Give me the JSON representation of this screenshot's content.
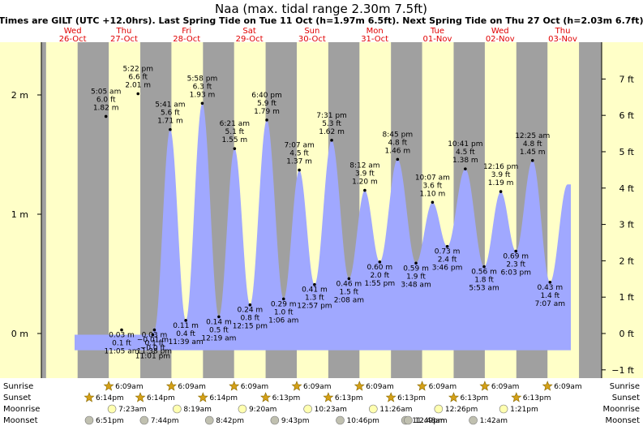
{
  "chart_data": {
    "type": "area",
    "title": "Naa (max. tidal range 2.30m 7.5ft)",
    "subtitle": "Times are GILT (UTC +12.0hrs). Last Spring Tide on Tue 11 Oct (h=1.97m 6.5ft). Next Spring Tide on Thu 27 Oct (h=2.03m 6.7ft)",
    "days": [
      {
        "name": "Wed",
        "date": "26-Oct"
      },
      {
        "name": "Thu",
        "date": "27-Oct"
      },
      {
        "name": "Fri",
        "date": "28-Oct"
      },
      {
        "name": "Sat",
        "date": "29-Oct"
      },
      {
        "name": "Sun",
        "date": "30-Oct"
      },
      {
        "name": "Mon",
        "date": "31-Oct"
      },
      {
        "name": "Tue",
        "date": "01-Nov"
      },
      {
        "name": "Wed",
        "date": "02-Nov"
      },
      {
        "name": "Thu",
        "date": "03-Nov"
      }
    ],
    "y_left_ticks": [
      {
        "v": 0,
        "label": "0 m"
      },
      {
        "v": 1,
        "label": "1 m"
      },
      {
        "v": 2,
        "label": "2 m"
      }
    ],
    "y_right_ticks": [
      {
        "v": -1,
        "label": "−1 ft"
      },
      {
        "v": 0,
        "label": "0 ft"
      },
      {
        "v": 1,
        "label": "1 ft"
      },
      {
        "v": 2,
        "label": "2 ft"
      },
      {
        "v": 3,
        "label": "3 ft"
      },
      {
        "v": 4,
        "label": "4 ft"
      },
      {
        "v": 5,
        "label": "5 ft"
      },
      {
        "v": 6,
        "label": "6 ft"
      },
      {
        "v": 7,
        "label": "7 ft"
      }
    ],
    "ylim_m": [
      -0.45,
      2.5
    ],
    "tides": [
      {
        "h": -0.01,
        "hl": "low",
        "d": 1,
        "t": "11:01 pm",
        "m": "−0.01 m",
        "ft": "−0.0 ft"
      },
      {
        "h": 1.82,
        "hl": "high",
        "d": 1,
        "t": "5:05 am",
        "m": "1.82 m",
        "ft": "6.0 ft"
      },
      {
        "h": 0.03,
        "hl": "low",
        "d": 1,
        "t": "11:05 am",
        "m": "0.03 m",
        "ft": "0.1 ft"
      },
      {
        "h": 2.01,
        "hl": "high",
        "d": 1,
        "t": "5:22 pm",
        "m": "2.01 m",
        "ft": "6.6 ft"
      },
      {
        "h": 0.03,
        "hl": "low",
        "d": 1,
        "t": "11:38 pm",
        "m": "0.03 m",
        "ft": "0.1 ft"
      },
      {
        "h": 1.71,
        "hl": "high",
        "d": 2,
        "t": "5:41 am",
        "m": "1.71 m",
        "ft": "5.6 ft"
      },
      {
        "h": 0.11,
        "hl": "low",
        "d": 2,
        "t": "11:39 am",
        "m": "0.11 m",
        "ft": "0.4 ft"
      },
      {
        "h": 1.93,
        "hl": "high",
        "d": 2,
        "t": "5:58 pm",
        "m": "1.93 m",
        "ft": "6.3 ft"
      },
      {
        "h": 0.14,
        "hl": "low",
        "d": 3,
        "t": "12:19 am",
        "m": "0.14 m",
        "ft": "0.5 ft"
      },
      {
        "h": 1.55,
        "hl": "high",
        "d": 3,
        "t": "6:21 am",
        "m": "1.55 m",
        "ft": "5.1 ft"
      },
      {
        "h": 0.24,
        "hl": "low",
        "d": 3,
        "t": "12:15 pm",
        "m": "0.24 m",
        "ft": "0.8 ft"
      },
      {
        "h": 1.79,
        "hl": "high",
        "d": 3,
        "t": "6:40 pm",
        "m": "1.79 m",
        "ft": "5.9 ft"
      },
      {
        "h": 0.29,
        "hl": "low",
        "d": 4,
        "t": "1:06 am",
        "m": "0.29 m",
        "ft": "1.0 ft"
      },
      {
        "h": 1.37,
        "hl": "high",
        "d": 4,
        "t": "7:07 am",
        "m": "1.37 m",
        "ft": "4.5 ft"
      },
      {
        "h": 0.41,
        "hl": "low",
        "d": 4,
        "t": "12:57 pm",
        "m": "0.41 m",
        "ft": "1.3 ft"
      },
      {
        "h": 1.62,
        "hl": "high",
        "d": 4,
        "t": "7:31 pm",
        "m": "1.62 m",
        "ft": "5.3 ft"
      },
      {
        "h": 0.46,
        "hl": "low",
        "d": 5,
        "t": "2:08 am",
        "m": "0.46 m",
        "ft": "1.5 ft"
      },
      {
        "h": 1.2,
        "hl": "high",
        "d": 5,
        "t": "8:12 am",
        "m": "1.20 m",
        "ft": "3.9 ft"
      },
      {
        "h": 0.6,
        "hl": "low",
        "d": 5,
        "t": "1:55 pm",
        "m": "0.60 m",
        "ft": "2.0 ft"
      },
      {
        "h": 1.46,
        "hl": "high",
        "d": 5,
        "t": "8:45 pm",
        "m": "1.46 m",
        "ft": "4.8 ft"
      },
      {
        "h": 0.59,
        "hl": "low",
        "d": 6,
        "t": "3:48 am",
        "m": "0.59 m",
        "ft": "1.9 ft"
      },
      {
        "h": 1.1,
        "hl": "high",
        "d": 6,
        "t": "10:07 am",
        "m": "1.10 m",
        "ft": "3.6 ft"
      },
      {
        "h": 0.73,
        "hl": "low",
        "d": 6,
        "t": "3:46 pm",
        "m": "0.73 m",
        "ft": "2.4 ft"
      },
      {
        "h": 1.38,
        "hl": "high",
        "d": 6,
        "t": "10:41 pm",
        "m": "1.38 m",
        "ft": "4.5 ft"
      },
      {
        "h": 0.56,
        "hl": "low",
        "d": 7,
        "t": "5:53 am",
        "m": "0.56 m",
        "ft": "1.8 ft"
      },
      {
        "h": 1.19,
        "hl": "high",
        "d": 7,
        "t": "12:16 pm",
        "m": "1.19 m",
        "ft": "3.9 ft"
      },
      {
        "h": 0.69,
        "hl": "low",
        "d": 7,
        "t": "6:03 pm",
        "m": "0.69 m",
        "ft": "2.3 ft"
      },
      {
        "h": 1.45,
        "hl": "high",
        "d": 8,
        "t": "12:25 am",
        "m": "1.45 m",
        "ft": "4.8 ft"
      },
      {
        "h": 0.43,
        "hl": "low",
        "d": 8,
        "t": "7:07 am",
        "m": "0.43 m",
        "ft": "1.4 ft"
      }
    ],
    "row_labels": {
      "sunrise": "Sunrise",
      "sunset": "Sunset",
      "moonrise": "Moonrise",
      "moonset": "Moonset"
    },
    "sunrise": [
      {
        "d": 1,
        "t": "6:09am"
      },
      {
        "d": 2,
        "t": "6:09am"
      },
      {
        "d": 3,
        "t": "6:09am"
      },
      {
        "d": 4,
        "t": "6:09am"
      },
      {
        "d": 5,
        "t": "6:09am"
      },
      {
        "d": 6,
        "t": "6:09am"
      },
      {
        "d": 7,
        "t": "6:09am"
      },
      {
        "d": 8,
        "t": "6:09am"
      }
    ],
    "sunset": [
      {
        "d": 0,
        "t": "6:14pm"
      },
      {
        "d": 1,
        "t": "6:14pm"
      },
      {
        "d": 2,
        "t": "6:14pm"
      },
      {
        "d": 3,
        "t": "6:13pm"
      },
      {
        "d": 4,
        "t": "6:13pm"
      },
      {
        "d": 5,
        "t": "6:13pm"
      },
      {
        "d": 6,
        "t": "6:13pm"
      },
      {
        "d": 7,
        "t": "6:13pm"
      }
    ],
    "moonrise": [
      {
        "d": 1,
        "t": "7:23am"
      },
      {
        "d": 2,
        "t": "8:19am"
      },
      {
        "d": 3,
        "t": "9:20am"
      },
      {
        "d": 4,
        "t": "10:23am"
      },
      {
        "d": 5,
        "t": "11:26am"
      },
      {
        "d": 6,
        "t": "12:26pm"
      },
      {
        "d": 7,
        "t": "1:21pm"
      }
    ],
    "moonset": [
      {
        "d": 0,
        "t": "6:51pm"
      },
      {
        "d": 1,
        "t": "7:44pm"
      },
      {
        "d": 2,
        "t": "8:42pm"
      },
      {
        "d": 3,
        "t": "9:43pm"
      },
      {
        "d": 4,
        "t": "10:46pm"
      },
      {
        "d": 5,
        "t": "11:49pm"
      },
      {
        "d": 6,
        "t": "12:48am"
      },
      {
        "d": 7,
        "t": "1:42am"
      }
    ],
    "colors": {
      "day_bg": "#ffffc8",
      "night_bg": "#a0a0a0",
      "water": "#a0a8ff",
      "day_label": "#e00000",
      "sun": "#d4a017",
      "moon_rise": "#ffffb0",
      "moon_set": "#c0c0b0"
    }
  }
}
